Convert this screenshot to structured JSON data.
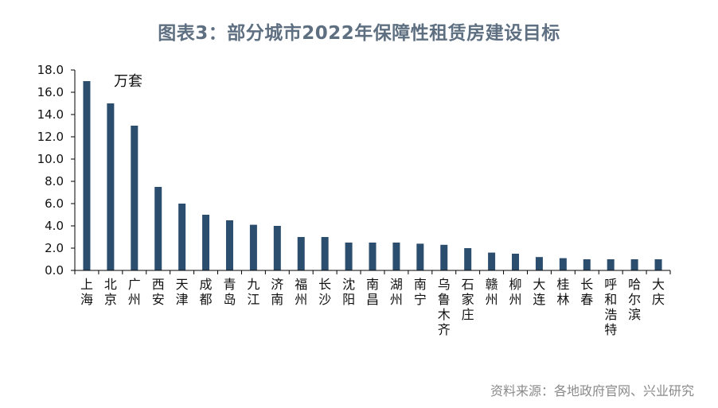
{
  "title": "图表3：部分城市2022年保障性租赁房建设目标",
  "unit": "万套",
  "source": "资料来源：各地政府官网、兴业研究",
  "colors": {
    "bar": "#2b4d6e",
    "axis": "#000000"
  },
  "chart_data": {
    "type": "bar",
    "categories": [
      "上海",
      "北京",
      "广州",
      "西安",
      "天津",
      "成都",
      "青岛",
      "九江",
      "济南",
      "福州",
      "长沙",
      "沈阳",
      "南昌",
      "湖州",
      "南宁",
      "乌鲁木齐",
      "石家庄",
      "赣州",
      "柳州",
      "大连",
      "桂林",
      "长春",
      "呼和浩特",
      "哈尔滨",
      "大庆"
    ],
    "values": [
      17.0,
      15.0,
      13.0,
      7.5,
      6.0,
      5.0,
      4.5,
      4.1,
      4.0,
      3.0,
      3.0,
      2.5,
      2.5,
      2.5,
      2.4,
      2.3,
      2.0,
      1.6,
      1.5,
      1.2,
      1.1,
      1.0,
      1.0,
      1.0,
      1.0
    ],
    "yticks": [
      "0.0",
      "2.0",
      "4.0",
      "6.0",
      "8.0",
      "10.0",
      "12.0",
      "14.0",
      "16.0",
      "18.0"
    ],
    "ylim": [
      0,
      18
    ],
    "grid": false,
    "legend": "none"
  }
}
